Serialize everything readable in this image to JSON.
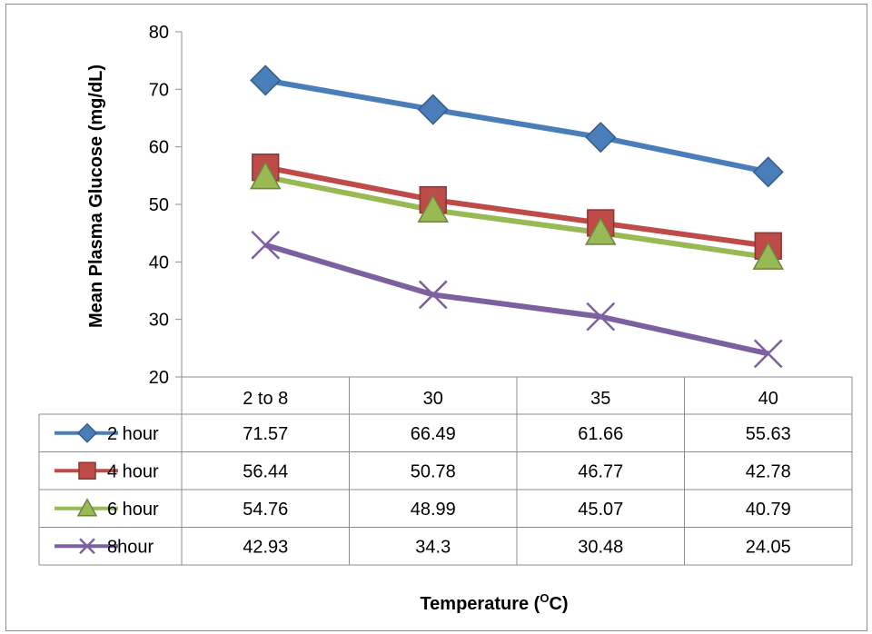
{
  "chart_data": {
    "type": "line",
    "title": "",
    "xlabel": "Temperature (",
    "xlabel_super": "O",
    "xlabel_suffix": "C)",
    "ylabel": "Mean Plasma Glucose (mg/dL)",
    "categories": [
      "2 to 8",
      "30",
      "35",
      "40"
    ],
    "ylim": [
      20,
      80
    ],
    "yticks": [
      20,
      30,
      40,
      50,
      60,
      70,
      80
    ],
    "grid": false,
    "legend": "data-table",
    "series": [
      {
        "name": "2 hour",
        "values": [
          71.57,
          66.49,
          61.66,
          55.63
        ],
        "labels": [
          "71.57",
          "66.49",
          "61.66",
          "55.63"
        ],
        "color": "#4a7ebb",
        "marker": "diamond"
      },
      {
        "name": "4 hour",
        "values": [
          56.44,
          50.78,
          46.77,
          42.78
        ],
        "labels": [
          "56.44",
          "50.78",
          "46.77",
          "42.78"
        ],
        "color": "#be4b48",
        "marker": "square"
      },
      {
        "name": "6 hour",
        "values": [
          54.76,
          48.99,
          45.07,
          40.79
        ],
        "labels": [
          "54.76",
          "48.99",
          "45.07",
          "40.79"
        ],
        "color": "#98b954",
        "marker": "triangle"
      },
      {
        "name": "8hour",
        "values": [
          42.93,
          34.3,
          30.48,
          24.05
        ],
        "labels": [
          "42.93",
          "34.3",
          "30.48",
          "24.05"
        ],
        "color": "#7d60a0",
        "marker": "x"
      }
    ]
  }
}
